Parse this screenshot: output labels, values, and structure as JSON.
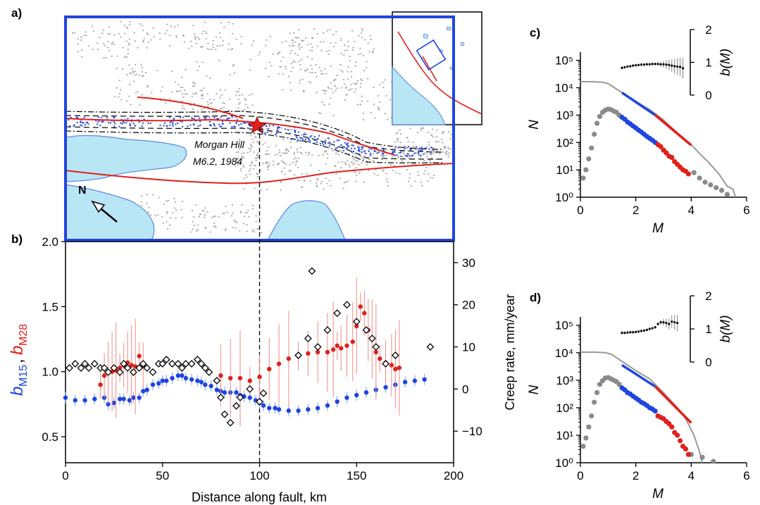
{
  "panel_labels": {
    "a": "a)",
    "b": "b)",
    "c": "c)",
    "d": "d)"
  },
  "map": {
    "event_label_1": "Morgan Hill",
    "event_label_2": "M6.2, 1984",
    "north_label": "N",
    "colors": {
      "water": "#b8e6f5",
      "frame": "#1f45e0",
      "fault": "#e0201c",
      "seismicity": "#9a9a9a",
      "selected": "#1f45e0"
    }
  },
  "chart_data": [
    {
      "panel": "b",
      "type": "scatter",
      "xlabel": "Distance along fault, km",
      "ylabel_left": {
        "b": "b",
        "sub_blue": "M15",
        "sub_red": "M28"
      },
      "ylabel_right": "Creep rate, mm/year",
      "xlim": [
        0,
        200
      ],
      "ylim_left": [
        0.3,
        2.0
      ],
      "ylim_right": [
        -17.5,
        35
      ],
      "xticks": [
        "0",
        "50",
        "100",
        "150",
        "200"
      ],
      "yticks_left": [
        "0.5",
        "1.0",
        "1.5",
        "2.0"
      ],
      "yticks_right": [
        "-10",
        "0",
        "10",
        "20",
        "30"
      ],
      "vline_x": 100,
      "series": [
        {
          "color": "#1f45e0",
          "x": [
            0,
            5,
            10,
            15,
            20,
            22,
            25,
            28,
            30,
            33,
            35,
            38,
            40,
            42,
            45,
            48,
            50,
            52,
            55,
            58,
            60,
            62,
            65,
            68,
            70,
            72,
            75,
            78,
            80,
            82,
            85,
            88,
            90,
            92,
            95,
            98,
            100,
            102,
            105,
            108,
            110,
            115,
            120,
            125,
            130,
            135,
            140,
            145,
            150,
            155,
            160,
            165,
            170,
            175,
            180,
            185
          ],
          "values": [
            0.8,
            0.78,
            0.78,
            0.79,
            0.8,
            0.75,
            0.76,
            0.79,
            0.79,
            0.78,
            0.8,
            0.8,
            0.85,
            0.86,
            0.9,
            0.91,
            0.93,
            0.93,
            0.95,
            0.97,
            0.97,
            0.95,
            0.94,
            0.93,
            0.92,
            0.9,
            0.89,
            0.86,
            0.85,
            0.84,
            0.84,
            0.84,
            0.82,
            0.81,
            0.8,
            0.78,
            0.76,
            0.74,
            0.72,
            0.72,
            0.71,
            0.7,
            0.7,
            0.71,
            0.72,
            0.74,
            0.77,
            0.8,
            0.82,
            0.84,
            0.86,
            0.88,
            0.9,
            0.92,
            0.93,
            0.94
          ]
        },
        {
          "color": "#e0201c",
          "x": [
            18,
            20,
            22,
            24,
            26,
            28,
            30,
            32,
            34,
            36,
            38,
            40,
            80,
            85,
            90,
            95,
            100,
            105,
            110,
            115,
            120,
            125,
            130,
            135,
            138,
            140,
            142,
            145,
            148,
            150,
            152,
            154,
            156,
            158,
            160,
            162,
            165,
            168,
            170,
            172
          ],
          "values": [
            0.9,
            0.97,
            0.99,
            1.0,
            1.01,
            1.03,
            1.05,
            1.07,
            1.05,
            1.04,
            1.12,
            1.05,
            0.97,
            0.95,
            0.95,
            0.93,
            0.96,
            1.02,
            1.06,
            1.1,
            1.12,
            1.14,
            1.15,
            1.15,
            1.17,
            1.2,
            1.18,
            1.2,
            1.23,
            1.35,
            1.5,
            1.45,
            1.32,
            1.25,
            1.15,
            1.1,
            1.07,
            1.05,
            1.02,
            1.03
          ]
        },
        {
          "color": "#000000",
          "marker": "diamond-open",
          "x": [
            2,
            5,
            8,
            10,
            12,
            15,
            18,
            20,
            22,
            25,
            28,
            30,
            32,
            35,
            38,
            40,
            42,
            45,
            48,
            50,
            52,
            55,
            58,
            60,
            62,
            65,
            68,
            70,
            72,
            74,
            78,
            80,
            82,
            85,
            88,
            90,
            95,
            100,
            102,
            120,
            125,
            127,
            130,
            135,
            140,
            145,
            150,
            155,
            158,
            160,
            165,
            170,
            188
          ],
          "values": [
            5,
            6,
            5,
            6,
            5,
            6,
            5,
            5,
            4,
            5,
            4,
            6,
            5,
            4,
            5,
            6,
            5,
            4,
            6,
            6,
            7,
            6,
            6,
            5,
            6,
            6,
            7,
            6,
            5,
            4,
            2,
            -2,
            -6,
            -8,
            -4,
            -2,
            0,
            -3,
            -1,
            8,
            12,
            28,
            10,
            14,
            18,
            20,
            16,
            14,
            12,
            10,
            6,
            8,
            10
          ]
        }
      ]
    },
    {
      "panel": "c",
      "type": "scatter",
      "xlabel": "M",
      "ylabel": "N",
      "ylabel_right": "b(M)",
      "xlim": [
        0,
        6
      ],
      "ylim_log10": [
        0,
        5.3
      ],
      "xticks": [
        "0",
        "2",
        "4",
        "6"
      ],
      "yticks": [
        "10⁰",
        "10¹",
        "10²",
        "10³",
        "10⁴",
        "10⁵"
      ],
      "bticks": [
        "0",
        "1",
        "2"
      ],
      "cumulative": {
        "color": "#999999",
        "x": [
          0,
          0.4,
          0.8,
          1.0,
          1.2,
          1.5,
          2.0,
          2.5,
          3.0,
          3.5,
          4.0,
          4.3,
          4.6,
          5.0,
          5.3,
          5.5,
          5.6
        ],
        "log10N": [
          4.22,
          4.22,
          4.2,
          4.15,
          4.02,
          3.82,
          3.5,
          3.2,
          2.82,
          2.35,
          1.92,
          1.6,
          1.3,
          0.85,
          0.4,
          0.3,
          0
        ]
      },
      "fit_blue": {
        "x": [
          1.5,
          2.7
        ],
        "log10N": [
          3.82,
          3.0
        ]
      },
      "fit_red": {
        "x": [
          2.7,
          4.0
        ],
        "log10N": [
          3.0,
          1.9
        ]
      },
      "noncum_gray": {
        "x": [
          0.1,
          0.2,
          0.3,
          0.4,
          0.5,
          0.6,
          0.7,
          0.8,
          0.9,
          1.0,
          1.1,
          1.2,
          1.3,
          1.4,
          4.1,
          4.3,
          4.5,
          4.7,
          4.9,
          5.1,
          5.3
        ],
        "log10N": [
          0.7,
          1.0,
          1.4,
          1.8,
          2.3,
          2.7,
          2.95,
          3.1,
          3.18,
          3.22,
          3.2,
          3.15,
          3.1,
          3.0,
          0.9,
          0.7,
          0.55,
          0.45,
          0.35,
          0.25,
          0.1
        ]
      },
      "noncum_blue": {
        "x": [
          1.5,
          1.6,
          1.7,
          1.8,
          1.9,
          2.0,
          2.1,
          2.2,
          2.3,
          2.4,
          2.5,
          2.6,
          2.7
        ],
        "log10N": [
          2.92,
          2.85,
          2.75,
          2.68,
          2.6,
          2.53,
          2.45,
          2.38,
          2.3,
          2.22,
          2.15,
          2.08,
          2.0
        ]
      },
      "noncum_red": {
        "x": [
          2.8,
          2.9,
          3.0,
          3.1,
          3.2,
          3.3,
          3.4,
          3.5,
          3.6,
          3.7,
          3.8,
          3.9
        ],
        "log10N": [
          1.92,
          1.85,
          1.72,
          1.62,
          1.5,
          1.45,
          1.3,
          1.2,
          1.1,
          1.0,
          0.95,
          0.85
        ]
      },
      "bM": {
        "x": [
          1.5,
          1.6,
          1.7,
          1.8,
          1.9,
          2.0,
          2.1,
          2.2,
          2.3,
          2.4,
          2.5,
          2.6,
          2.7,
          2.8,
          2.9,
          3.0,
          3.1,
          3.2,
          3.3,
          3.4,
          3.5,
          3.6,
          3.7
        ],
        "values": [
          0.83,
          0.85,
          0.87,
          0.88,
          0.9,
          0.91,
          0.92,
          0.93,
          0.93,
          0.94,
          0.94,
          0.95,
          0.95,
          0.95,
          0.94,
          0.94,
          0.93,
          0.92,
          0.9,
          0.88,
          0.87,
          0.86,
          0.82
        ]
      }
    },
    {
      "panel": "d",
      "type": "scatter",
      "xlabel": "M",
      "ylabel": "N",
      "ylabel_right": "b(M)",
      "xlim": [
        0,
        6
      ],
      "ylim_log10": [
        0,
        5.3
      ],
      "xticks": [
        "0",
        "2",
        "4",
        "6"
      ],
      "yticks": [
        "10⁰",
        "10¹",
        "10²",
        "10³",
        "10⁴",
        "10⁵"
      ],
      "bticks": [
        "0",
        "1",
        "2"
      ],
      "cumulative": {
        "color": "#999999",
        "x": [
          0,
          0.5,
          0.9,
          1.1,
          1.3,
          1.6,
          2.0,
          2.5,
          3.0,
          3.5,
          3.8,
          4.1,
          4.3,
          4.4
        ],
        "log10N": [
          4.02,
          4.02,
          4.0,
          3.95,
          3.82,
          3.62,
          3.35,
          3.05,
          2.55,
          2.0,
          1.6,
          1.0,
          0.4,
          0
        ]
      },
      "fit_blue": {
        "x": [
          1.5,
          2.7
        ],
        "log10N": [
          3.55,
          2.77
        ]
      },
      "fit_red": {
        "x": [
          2.7,
          4.0
        ],
        "log10N": [
          2.77,
          1.45
        ]
      },
      "noncum_gray": {
        "x": [
          0.1,
          0.2,
          0.3,
          0.4,
          0.5,
          0.6,
          0.7,
          0.8,
          0.9,
          1.0,
          1.1,
          1.2,
          1.3,
          1.4,
          4.0,
          4.4,
          4.8
        ],
        "log10N": [
          0.6,
          0.9,
          1.3,
          1.7,
          2.2,
          2.55,
          2.85,
          2.98,
          3.08,
          3.1,
          3.05,
          3.0,
          2.95,
          2.85,
          0.3,
          0.2,
          0.05
        ]
      },
      "noncum_blue": {
        "x": [
          1.5,
          1.6,
          1.7,
          1.8,
          1.9,
          2.0,
          2.1,
          2.2,
          2.3,
          2.4,
          2.5,
          2.6,
          2.7
        ],
        "log10N": [
          2.72,
          2.65,
          2.55,
          2.5,
          2.42,
          2.35,
          2.28,
          2.2,
          2.15,
          2.08,
          2.0,
          1.95,
          1.88
        ]
      },
      "noncum_red": {
        "x": [
          2.8,
          2.9,
          3.0,
          3.1,
          3.2,
          3.3,
          3.4,
          3.5,
          3.6,
          3.7,
          3.8,
          3.9
        ],
        "log10N": [
          1.7,
          1.65,
          1.6,
          1.5,
          1.42,
          1.3,
          1.1,
          1.0,
          0.8,
          0.6,
          0.5,
          0.3
        ]
      },
      "bM": {
        "x": [
          1.5,
          1.6,
          1.7,
          1.8,
          1.9,
          2.0,
          2.1,
          2.2,
          2.3,
          2.4,
          2.5,
          2.6,
          2.7,
          2.8,
          2.9,
          3.0,
          3.1,
          3.2,
          3.3,
          3.4,
          3.5
        ],
        "values": [
          0.88,
          0.88,
          0.89,
          0.9,
          0.9,
          0.91,
          0.92,
          0.94,
          0.95,
          0.97,
          1.0,
          1.02,
          1.05,
          1.15,
          1.2,
          1.2,
          1.18,
          1.15,
          1.22,
          1.2,
          1.18
        ]
      }
    }
  ]
}
